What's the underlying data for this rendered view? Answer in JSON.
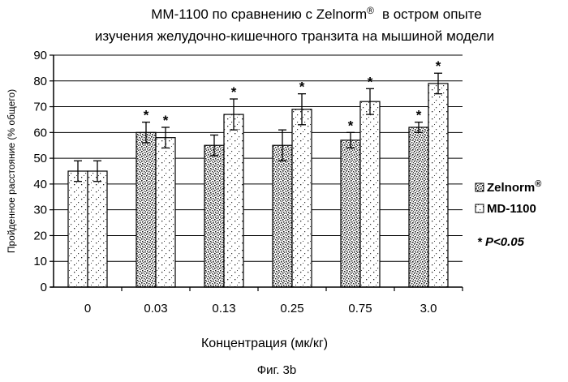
{
  "chart_data": {
    "type": "bar",
    "title_line1": "ММ-1100 по сравнению с Zelnorm",
    "title_reg": "®",
    "title_line1_tail": "в остром опыте",
    "title_line2": "изучения желудочно-кишечного транзита на мышиной модели",
    "xlabel": "Концентрация (мк/кг)",
    "ylabel": "Пройденное расстояние (% общего)",
    "caption": "Фиг. 3b",
    "ylim": [
      0,
      90
    ],
    "yticks": [
      0,
      10,
      20,
      30,
      40,
      50,
      60,
      70,
      80,
      90
    ],
    "grid": true,
    "legend_position": "right",
    "categories": [
      "0",
      "0.03",
      "0.13",
      "0.25",
      "0.75",
      "3.0"
    ],
    "series": [
      {
        "name": "Zelnorm",
        "name_sup": "®",
        "pattern": "dense",
        "values": [
          45,
          60,
          55,
          55,
          57,
          62
        ],
        "errors": [
          4,
          4,
          4,
          6,
          3,
          2
        ],
        "significant": [
          false,
          true,
          false,
          false,
          true,
          true
        ]
      },
      {
        "name": "MD-1100",
        "name_sup": "",
        "pattern": "sparse",
        "values": [
          45,
          58,
          67,
          69,
          72,
          79
        ],
        "errors": [
          4,
          4,
          6,
          6,
          5,
          4
        ],
        "significant": [
          false,
          true,
          true,
          true,
          true,
          true
        ]
      }
    ],
    "significance_marker": "*",
    "significance_note": "* P<0.05"
  },
  "colors": {
    "axis": "#000000",
    "grid": "#000000",
    "bar_fill": "#ffffff",
    "speckle": "#222222"
  }
}
